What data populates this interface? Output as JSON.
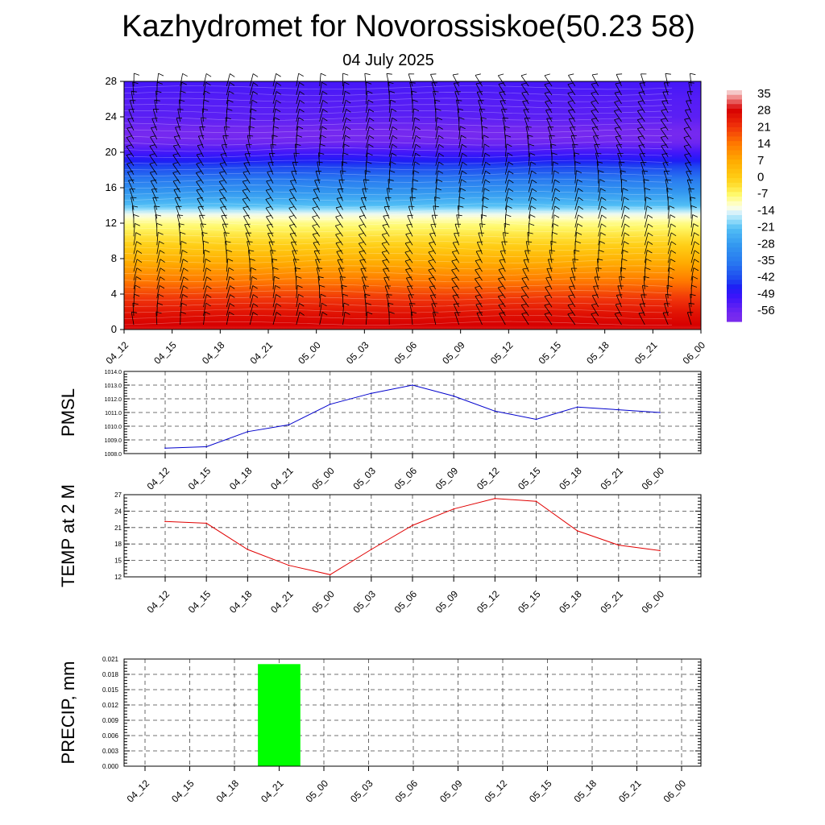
{
  "header": {
    "title": "Kazhydromet for Novorossiskoe(50.23 58)",
    "subtitle": "04 July 2025"
  },
  "colors": {
    "pmsl_line": "#0000cc",
    "temp_line": "#e00000",
    "precip_bar": "#00ff00"
  },
  "time_labels": [
    "04_12",
    "04_15",
    "04_18",
    "04_21",
    "05_00",
    "05_03",
    "05_06",
    "05_09",
    "05_12",
    "05_15",
    "05_18",
    "05_21",
    "06_00"
  ],
  "chart_data": [
    {
      "type": "heatmap",
      "name": "cross-section",
      "x": [
        "04_12",
        "04_15",
        "04_18",
        "04_21",
        "05_00",
        "05_03",
        "05_06",
        "05_09",
        "05_12",
        "05_15",
        "05_18",
        "05_21",
        "06_00"
      ],
      "ylim": [
        0,
        28
      ],
      "y_ticks": [
        0,
        4,
        8,
        12,
        16,
        20,
        24,
        28
      ],
      "colorbar_ticks": [
        35,
        28,
        21,
        14,
        7,
        0,
        -7,
        -14,
        -21,
        -28,
        -35,
        -42,
        -49,
        -56
      ],
      "y_profile": [
        0,
        2,
        4,
        6,
        8,
        10,
        12,
        13,
        14,
        16,
        18,
        20,
        21,
        22,
        24,
        26,
        28
      ],
      "values_profile": [
        29,
        25,
        19,
        12,
        5,
        -2,
        -8,
        -13,
        -21,
        -30,
        -40,
        -50,
        -55,
        -57,
        -53,
        -52,
        -50
      ],
      "wind_barbs": true
    },
    {
      "type": "line",
      "ylabel": "PMSL",
      "x": [
        "04_12",
        "04_15",
        "04_18",
        "04_21",
        "05_00",
        "05_03",
        "05_06",
        "05_09",
        "05_12",
        "05_15",
        "05_18",
        "05_21",
        "06_00"
      ],
      "values": [
        1008.4,
        1008.5,
        1009.6,
        1010.1,
        1011.6,
        1012.4,
        1013.0,
        1012.2,
        1011.1,
        1010.5,
        1011.4,
        1011.2,
        1011.0
      ],
      "ylim": [
        1008.0,
        1014.0
      ],
      "y_ticks": [
        "1008.0",
        "1009.0",
        "1010.0",
        "1011.0",
        "1012.0",
        "1013.0",
        "1014.0"
      ],
      "grid": true
    },
    {
      "type": "line",
      "ylabel": "TEMP at 2 M",
      "x": [
        "04_12",
        "04_15",
        "04_18",
        "04_21",
        "05_00",
        "05_03",
        "05_06",
        "05_09",
        "05_12",
        "05_15",
        "05_18",
        "05_21",
        "06_00"
      ],
      "values": [
        22.1,
        21.8,
        17.0,
        14.1,
        12.4,
        17.0,
        21.4,
        24.4,
        26.3,
        25.8,
        20.4,
        17.8,
        16.8
      ],
      "ylim": [
        12,
        27
      ],
      "y_ticks": [
        "12",
        "15",
        "18",
        "21",
        "24",
        "27"
      ],
      "grid": true
    },
    {
      "type": "bar",
      "ylabel": "PRECIP, mm",
      "x": [
        "04_12",
        "04_15",
        "04_18",
        "04_21",
        "05_00",
        "05_03",
        "05_06",
        "05_09",
        "05_12",
        "05_15",
        "05_18",
        "05_21",
        "06_00"
      ],
      "values": [
        0,
        0,
        0,
        0.02,
        0,
        0,
        0,
        0,
        0,
        0,
        0,
        0,
        0
      ],
      "ylim": [
        0,
        0.021
      ],
      "y_ticks": [
        "0.000",
        "0.003",
        "0.006",
        "0.009",
        "0.012",
        "0.015",
        "0.018",
        "0.021"
      ],
      "grid": true
    }
  ]
}
